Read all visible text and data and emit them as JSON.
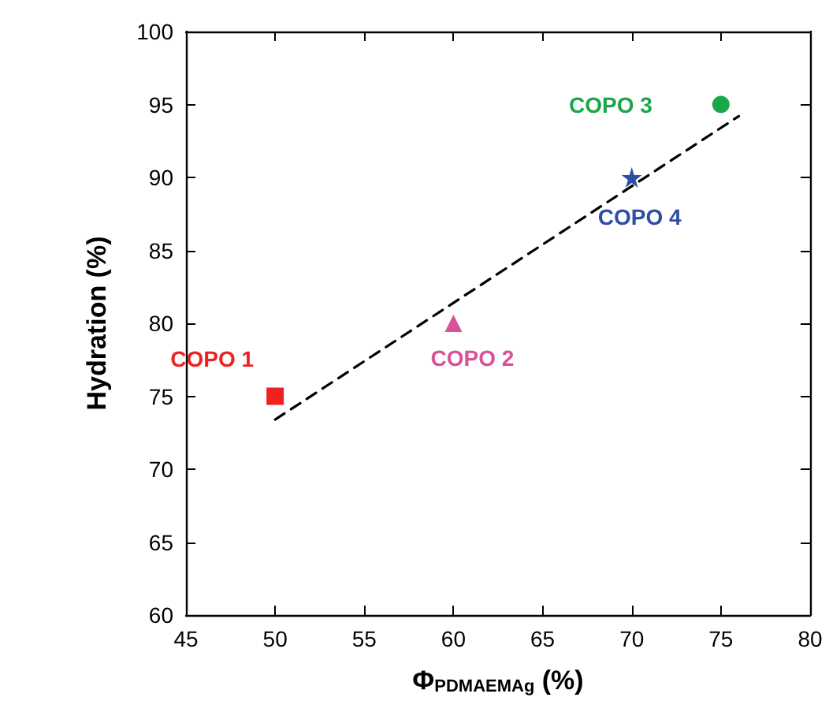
{
  "chart_data": {
    "type": "scatter",
    "xlabel": "Φ$_{PDMAEMAg}$ (%)",
    "ylabel": "Hydration (%)",
    "series": [
      {
        "name": "COPO 1",
        "color": "#ee2222",
        "marker": "square",
        "x": [
          50
        ],
        "values": [
          75
        ]
      },
      {
        "name": "COPO 2",
        "color": "#d9519b",
        "marker": "triangle",
        "x": [
          60
        ],
        "values": [
          80
        ]
      },
      {
        "name": "COPO 3",
        "color": "#1aa64a",
        "marker": "circle",
        "x": [
          75
        ],
        "values": [
          95
        ]
      },
      {
        "name": "COPO 4",
        "color": "#2d4fa3",
        "marker": "star",
        "x": [
          70
        ],
        "values": [
          90
        ]
      },
      {
        "type": "line",
        "color": "#000000",
        "marker": "none",
        "line_style": "dashed",
        "x": [
          50,
          76
        ],
        "values": [
          73.4,
          94.2
        ]
      }
    ],
    "xlim": [
      45,
      80
    ],
    "xticks": [
      45,
      50,
      55,
      60,
      65,
      70,
      75,
      80
    ],
    "ylim": [
      60,
      100
    ],
    "yticks": [
      60,
      65,
      70,
      75,
      80,
      85,
      90,
      95,
      100
    ],
    "grid": false,
    "legend": false
  }
}
